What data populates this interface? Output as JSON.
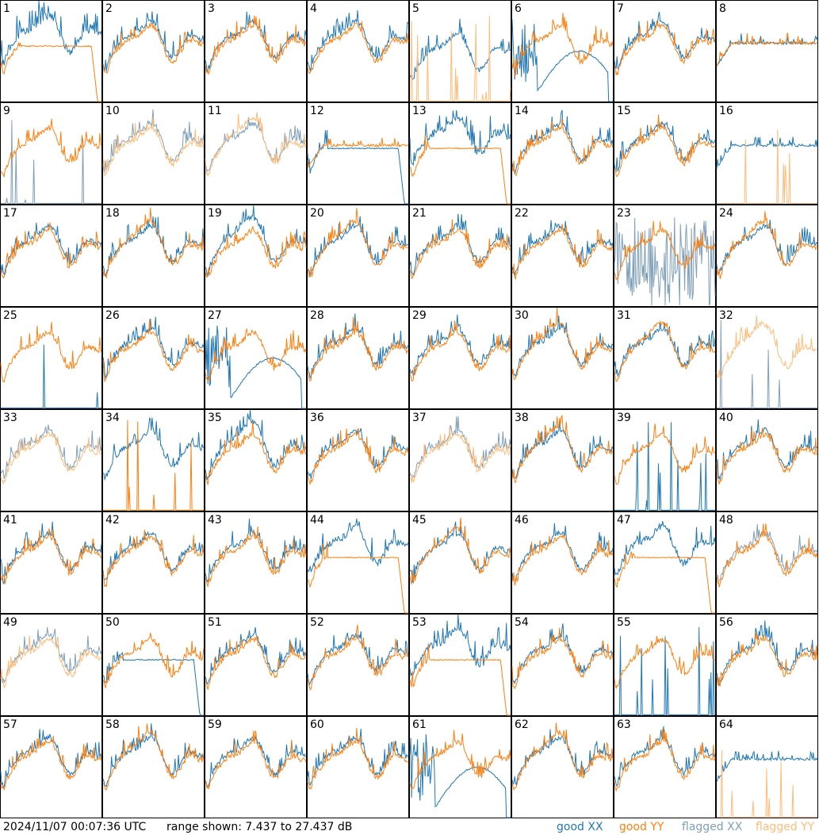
{
  "chart_data": {
    "type": "line",
    "layout": "8x8 small multiples",
    "panel_labels": [
      "1",
      "2",
      "3",
      "4",
      "5",
      "6",
      "7",
      "8",
      "9",
      "10",
      "11",
      "12",
      "13",
      "14",
      "15",
      "16",
      "17",
      "18",
      "19",
      "20",
      "21",
      "22",
      "23",
      "24",
      "25",
      "26",
      "27",
      "28",
      "29",
      "30",
      "31",
      "32",
      "33",
      "34",
      "35",
      "36",
      "37",
      "38",
      "39",
      "40",
      "41",
      "42",
      "43",
      "44",
      "45",
      "46",
      "47",
      "48",
      "49",
      "50",
      "51",
      "52",
      "53",
      "54",
      "55",
      "56",
      "57",
      "58",
      "59",
      "60",
      "61",
      "62",
      "63",
      "64"
    ],
    "ylim": [
      7.437,
      27.437
    ],
    "y_units": "dB",
    "grid": false,
    "legend_position": "bottom-right",
    "series": [
      {
        "name": "good XX",
        "color": "#1f77b4"
      },
      {
        "name": "good YY",
        "color": "#ff7f0e"
      },
      {
        "name": "flagged XX",
        "color": "#7f9fb8"
      },
      {
        "name": "flagged YY",
        "color": "#ffbb78"
      }
    ],
    "panels": [
      {
        "id": "1",
        "xx": "pres",
        "yy": "drop",
        "fx": false,
        "fy": false
      },
      {
        "id": "2",
        "xx": "normal",
        "yy": "normal",
        "fx": false,
        "fy": false
      },
      {
        "id": "3",
        "xx": "normal",
        "yy": "normal",
        "fx": false,
        "fy": false
      },
      {
        "id": "4",
        "xx": "normal",
        "yy": "normal",
        "fx": false,
        "fy": false
      },
      {
        "id": "5",
        "xx": "low",
        "yy": "spikes",
        "fx": false,
        "fy": true
      },
      {
        "id": "6",
        "xx": "arch",
        "yy": "normal",
        "fx": false,
        "fy": false
      },
      {
        "id": "7",
        "xx": "normal",
        "yy": "normal",
        "fx": false,
        "fy": false
      },
      {
        "id": "8",
        "xx": "flat",
        "yy": "flat",
        "fx": false,
        "fy": false
      },
      {
        "id": "9",
        "xx": "spikes",
        "yy": "normal",
        "fx": true,
        "fy": false
      },
      {
        "id": "10",
        "xx": "normal",
        "yy": "normal",
        "fx": true,
        "fy": true
      },
      {
        "id": "11",
        "xx": "normal",
        "yy": "deep",
        "fx": true,
        "fy": true
      },
      {
        "id": "12",
        "xx": "drop",
        "yy": "flat",
        "fx": false,
        "fy": false
      },
      {
        "id": "13",
        "xx": "pres",
        "yy": "drop",
        "fx": false,
        "fy": false
      },
      {
        "id": "14",
        "xx": "normal",
        "yy": "normal",
        "fx": false,
        "fy": false
      },
      {
        "id": "15",
        "xx": "normal",
        "yy": "normal",
        "fx": false,
        "fy": false
      },
      {
        "id": "16",
        "xx": "flat",
        "yy": "spikes",
        "fx": false,
        "fy": true
      },
      {
        "id": "17",
        "xx": "normal",
        "yy": "normal",
        "fx": false,
        "fy": false
      },
      {
        "id": "18",
        "xx": "normal",
        "yy": "deep",
        "fx": false,
        "fy": false
      },
      {
        "id": "19",
        "xx": "deep",
        "yy": "normal",
        "fx": false,
        "fy": false
      },
      {
        "id": "20",
        "xx": "normal",
        "yy": "deep",
        "fx": false,
        "fy": false
      },
      {
        "id": "21",
        "xx": "normal",
        "yy": "normal",
        "fx": false,
        "fy": false
      },
      {
        "id": "22",
        "xx": "normal",
        "yy": "normal",
        "fx": false,
        "fy": false
      },
      {
        "id": "23",
        "xx": "noisy",
        "yy": "normal",
        "fx": true,
        "fy": false
      },
      {
        "id": "24",
        "xx": "normal",
        "yy": "deep",
        "fx": false,
        "fy": false
      },
      {
        "id": "25",
        "xx": "spikes",
        "yy": "normal",
        "fx": false,
        "fy": false
      },
      {
        "id": "26",
        "xx": "normal",
        "yy": "normal",
        "fx": false,
        "fy": false
      },
      {
        "id": "27",
        "xx": "arch",
        "yy": "normal",
        "fx": false,
        "fy": false
      },
      {
        "id": "28",
        "xx": "normal",
        "yy": "normal",
        "fx": false,
        "fy": false
      },
      {
        "id": "29",
        "xx": "normal",
        "yy": "normal",
        "fx": false,
        "fy": false
      },
      {
        "id": "30",
        "xx": "normal",
        "yy": "deep",
        "fx": false,
        "fy": false
      },
      {
        "id": "31",
        "xx": "normal",
        "yy": "deep",
        "fx": false,
        "fy": false
      },
      {
        "id": "32",
        "xx": "spikes",
        "yy": "deep",
        "fx": true,
        "fy": true
      },
      {
        "id": "33",
        "xx": "normal",
        "yy": "normal",
        "fx": true,
        "fy": true
      },
      {
        "id": "34",
        "xx": "normal",
        "yy": "spikes",
        "fx": false,
        "fy": false
      },
      {
        "id": "35",
        "xx": "deep",
        "yy": "normal",
        "fx": false,
        "fy": false
      },
      {
        "id": "36",
        "xx": "normal",
        "yy": "normal",
        "fx": false,
        "fy": false
      },
      {
        "id": "37",
        "xx": "normal",
        "yy": "normal",
        "fx": true,
        "fy": true
      },
      {
        "id": "38",
        "xx": "normal",
        "yy": "deep",
        "fx": false,
        "fy": false
      },
      {
        "id": "39",
        "xx": "spikes",
        "yy": "normal",
        "fx": false,
        "fy": false
      },
      {
        "id": "40",
        "xx": "normal",
        "yy": "normal",
        "fx": false,
        "fy": false
      },
      {
        "id": "41",
        "xx": "normal",
        "yy": "normal",
        "fx": false,
        "fy": false
      },
      {
        "id": "42",
        "xx": "normal",
        "yy": "normal",
        "fx": false,
        "fy": false
      },
      {
        "id": "43",
        "xx": "normal",
        "yy": "normal",
        "fx": false,
        "fy": false
      },
      {
        "id": "44",
        "xx": "pres",
        "yy": "drop",
        "fx": false,
        "fy": false
      },
      {
        "id": "45",
        "xx": "normal",
        "yy": "deep",
        "fx": false,
        "fy": false
      },
      {
        "id": "46",
        "xx": "normal",
        "yy": "normal",
        "fx": false,
        "fy": false
      },
      {
        "id": "47",
        "xx": "pres",
        "yy": "drop",
        "fx": false,
        "fy": false
      },
      {
        "id": "48",
        "xx": "normal",
        "yy": "normal",
        "fx": true,
        "fy": false
      },
      {
        "id": "49",
        "xx": "normal",
        "yy": "normal",
        "fx": true,
        "fy": true
      },
      {
        "id": "50",
        "xx": "drop",
        "yy": "normal",
        "fx": false,
        "fy": false
      },
      {
        "id": "51",
        "xx": "normal",
        "yy": "normal",
        "fx": false,
        "fy": false
      },
      {
        "id": "52",
        "xx": "normal",
        "yy": "normal",
        "fx": false,
        "fy": false
      },
      {
        "id": "53",
        "xx": "pres",
        "yy": "drop",
        "fx": false,
        "fy": false
      },
      {
        "id": "54",
        "xx": "normal",
        "yy": "normal",
        "fx": false,
        "fy": false
      },
      {
        "id": "55",
        "xx": "spikes",
        "yy": "normal",
        "fx": false,
        "fy": false
      },
      {
        "id": "56",
        "xx": "normal",
        "yy": "normal",
        "fx": false,
        "fy": false
      },
      {
        "id": "57",
        "xx": "normal",
        "yy": "normal",
        "fx": false,
        "fy": false
      },
      {
        "id": "58",
        "xx": "normal",
        "yy": "deep",
        "fx": false,
        "fy": false
      },
      {
        "id": "59",
        "xx": "normal",
        "yy": "normal",
        "fx": false,
        "fy": false
      },
      {
        "id": "60",
        "xx": "normal",
        "yy": "normal",
        "fx": false,
        "fy": false
      },
      {
        "id": "61",
        "xx": "arch",
        "yy": "normal",
        "fx": false,
        "fy": false
      },
      {
        "id": "62",
        "xx": "normal",
        "yy": "deep",
        "fx": false,
        "fy": false
      },
      {
        "id": "63",
        "xx": "normal",
        "yy": "normal",
        "fx": false,
        "fy": false
      },
      {
        "id": "64",
        "xx": "flat",
        "yy": "spikes",
        "fx": false,
        "fy": true
      }
    ]
  },
  "footer": {
    "timestamp": "2024/11/07 00:07:36 UTC",
    "range_text": "range shown: 7.437 to 27.437 dB",
    "legend": {
      "good_xx": "good XX",
      "good_yy": "good YY",
      "flagged_xx": "flagged XX",
      "flagged_yy": "flagged YY"
    }
  }
}
